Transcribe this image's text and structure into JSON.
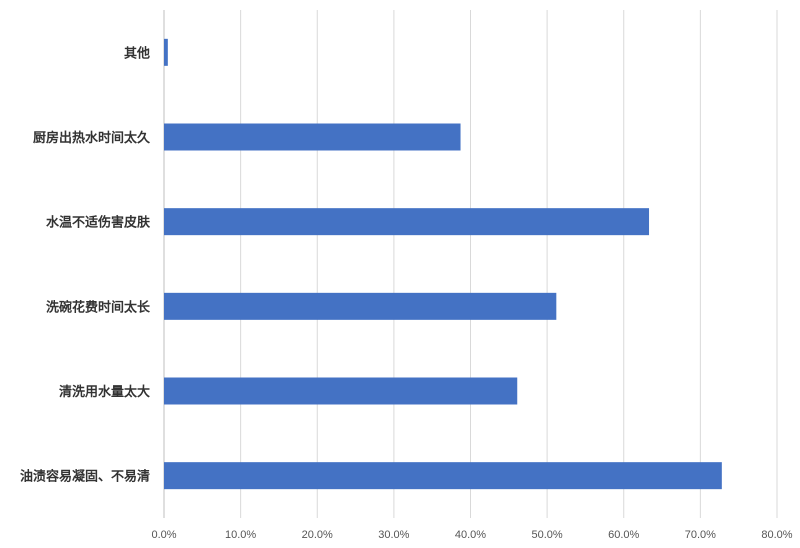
{
  "chart_data": {
    "type": "bar",
    "orientation": "horizontal",
    "categories": [
      "其他",
      "厨房出热水时间太久",
      "水温不适伤害皮肤",
      "洗碗花费时间太长",
      "清洗用水量太大",
      "油渍容易凝固、不易清"
    ],
    "values": [
      0.5,
      38.7,
      63.3,
      51.2,
      46.1,
      72.8
    ],
    "xlim": [
      0,
      80
    ],
    "x_ticks": [
      "0.0%",
      "10.0%",
      "20.0%",
      "30.0%",
      "40.0%",
      "50.0%",
      "60.0%",
      "70.0%",
      "80.0%"
    ],
    "title": "",
    "xlabel": "",
    "ylabel": "",
    "grid": "vertical",
    "legend": "none",
    "bar_color": "#4472C4"
  }
}
